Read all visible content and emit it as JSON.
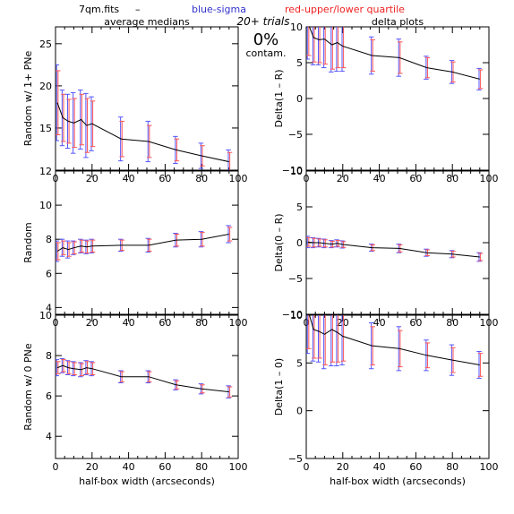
{
  "header": {
    "file": "7qm.fits",
    "dash": "–",
    "blue_label": "blue-sigma",
    "red_label": "red-upper/lower quartile",
    "left_title": "average medians",
    "right_title": "delta plots",
    "trials": "20+ trials",
    "contam_pct": "0%",
    "contam_label": "contam."
  },
  "colors": {
    "line": "#000000",
    "sigma": "#5555ff",
    "quartile": "#ff5555",
    "blue_text": "#3333cc",
    "red_text": "#ee2222"
  },
  "chart_data": [
    {
      "type": "line",
      "ylabel": "Random w/ 1+ PNe",
      "xlabel": "",
      "xlim": [
        0,
        100
      ],
      "ylim": [
        10,
        27
      ],
      "xticks": [
        0,
        20,
        40,
        60,
        80,
        100
      ],
      "yticks": [
        10,
        15,
        20,
        25
      ],
      "ytick_labels": [
        "",
        "15",
        "20",
        "25"
      ],
      "x": [
        1,
        4,
        7,
        10,
        14,
        17,
        20,
        36,
        51,
        66,
        80,
        95
      ],
      "y": [
        18.0,
        16.2,
        15.8,
        15.6,
        16.0,
        15.3,
        15.5,
        13.7,
        13.4,
        12.4,
        11.7,
        11.0
      ],
      "sigma": [
        4.5,
        3.3,
        3.2,
        3.6,
        3.5,
        3.8,
        3.2,
        2.6,
        2.4,
        1.6,
        1.5,
        1.4
      ],
      "quartile": [
        3.8,
        2.8,
        2.6,
        2.9,
        3.0,
        3.2,
        2.7,
        2.1,
        1.9,
        1.3,
        1.2,
        1.1
      ]
    },
    {
      "type": "line",
      "ylabel": "Delta(1 – R)",
      "xlabel": "",
      "xlim": [
        0,
        100
      ],
      "ylim": [
        -10,
        10
      ],
      "xticks": [
        0,
        20,
        40,
        60,
        80,
        100
      ],
      "yticks": [
        -10,
        -5,
        0,
        5,
        10
      ],
      "ytick_labels": [
        "−10",
        "−5",
        "0",
        "5",
        "10"
      ],
      "x": [
        1,
        4,
        7,
        10,
        14,
        17,
        20,
        36,
        51,
        66,
        80,
        95
      ],
      "y": [
        10.5,
        8.5,
        8.2,
        8.3,
        7.5,
        7.8,
        7.3,
        6.0,
        5.7,
        4.3,
        3.7,
        2.7
      ],
      "sigma": [
        5.0,
        3.8,
        3.5,
        4.0,
        3.8,
        4.0,
        3.5,
        2.6,
        2.6,
        1.6,
        1.6,
        1.5
      ],
      "quartile": [
        4.5,
        3.4,
        3.2,
        3.5,
        3.4,
        3.5,
        3.0,
        2.2,
        2.2,
        1.4,
        1.4,
        1.3
      ]
    },
    {
      "type": "line",
      "ylabel": "Random",
      "xlabel": "",
      "xlim": [
        0,
        100
      ],
      "ylim": [
        3.6,
        12
      ],
      "xticks": [
        0,
        20,
        40,
        60,
        80,
        100
      ],
      "yticks": [
        4,
        6,
        8,
        10,
        12
      ],
      "ytick_labels": [
        "4",
        "6",
        "8",
        "10",
        "12"
      ],
      "x": [
        1,
        4,
        7,
        10,
        14,
        17,
        20,
        36,
        51,
        66,
        80,
        95
      ],
      "y": [
        7.3,
        7.5,
        7.4,
        7.5,
        7.6,
        7.55,
        7.6,
        7.65,
        7.65,
        7.95,
        8.0,
        8.3
      ],
      "sigma": [
        0.6,
        0.5,
        0.5,
        0.4,
        0.4,
        0.4,
        0.4,
        0.35,
        0.4,
        0.4,
        0.45,
        0.5
      ],
      "quartile": [
        0.5,
        0.4,
        0.4,
        0.35,
        0.35,
        0.35,
        0.35,
        0.3,
        0.35,
        0.35,
        0.4,
        0.4
      ]
    },
    {
      "type": "line",
      "ylabel": "Delta(0 – R)",
      "xlabel": "",
      "xlim": [
        0,
        100
      ],
      "ylim": [
        -10,
        10
      ],
      "xticks": [
        0,
        20,
        40,
        60,
        80,
        100
      ],
      "yticks": [
        -10,
        -5,
        0,
        5,
        10
      ],
      "ytick_labels": [
        "−10",
        "−5",
        "0",
        "5",
        "10"
      ],
      "x": [
        1,
        4,
        7,
        10,
        14,
        17,
        20,
        36,
        51,
        66,
        80,
        95
      ],
      "y": [
        0.1,
        0.0,
        0.0,
        -0.1,
        -0.2,
        -0.1,
        -0.25,
        -0.7,
        -0.8,
        -1.4,
        -1.6,
        -2.0
      ],
      "sigma": [
        0.8,
        0.7,
        0.6,
        0.6,
        0.5,
        0.5,
        0.5,
        0.5,
        0.6,
        0.5,
        0.5,
        0.6
      ],
      "quartile": [
        0.6,
        0.6,
        0.5,
        0.5,
        0.4,
        0.4,
        0.4,
        0.4,
        0.5,
        0.4,
        0.4,
        0.5
      ]
    },
    {
      "type": "line",
      "ylabel": "Random w/ 0 PNe",
      "xlabel": "half-box width (arcseconds)",
      "xlim": [
        0,
        100
      ],
      "ylim": [
        2.9,
        10
      ],
      "xticks": [
        0,
        20,
        40,
        60,
        80,
        100
      ],
      "yticks": [
        4,
        6,
        8,
        10
      ],
      "ytick_labels": [
        "4",
        "6",
        "8",
        "10"
      ],
      "x": [
        1,
        4,
        7,
        10,
        14,
        17,
        20,
        36,
        51,
        66,
        80,
        95
      ],
      "y": [
        7.4,
        7.5,
        7.4,
        7.35,
        7.3,
        7.4,
        7.35,
        6.95,
        6.95,
        6.55,
        6.35,
        6.2
      ],
      "sigma": [
        0.4,
        0.35,
        0.35,
        0.35,
        0.35,
        0.35,
        0.35,
        0.3,
        0.3,
        0.25,
        0.25,
        0.3
      ],
      "quartile": [
        0.3,
        0.3,
        0.3,
        0.3,
        0.3,
        0.3,
        0.3,
        0.25,
        0.25,
        0.2,
        0.2,
        0.25
      ]
    },
    {
      "type": "line",
      "ylabel": "Delta(1 – 0)",
      "xlabel": "half-box width (arcseconds)",
      "xlim": [
        0,
        100
      ],
      "ylim": [
        -5,
        10
      ],
      "xticks": [
        0,
        20,
        40,
        60,
        80,
        100
      ],
      "yticks": [
        -5,
        0,
        5,
        10
      ],
      "ytick_labels": [
        "−5",
        "0",
        "5",
        "10"
      ],
      "x": [
        1,
        4,
        7,
        10,
        14,
        17,
        20,
        36,
        51,
        66,
        80,
        95
      ],
      "y": [
        10.5,
        8.5,
        8.3,
        8.0,
        8.5,
        8.2,
        7.8,
        6.8,
        6.5,
        5.8,
        5.3,
        4.8
      ],
      "sigma": [
        4.5,
        3.3,
        3.2,
        3.6,
        3.8,
        3.5,
        3.0,
        2.4,
        2.3,
        1.6,
        1.6,
        1.4
      ],
      "quartile": [
        4.0,
        3.0,
        2.8,
        3.2,
        3.4,
        3.1,
        2.6,
        2.0,
        1.9,
        1.3,
        1.3,
        1.2
      ]
    }
  ]
}
